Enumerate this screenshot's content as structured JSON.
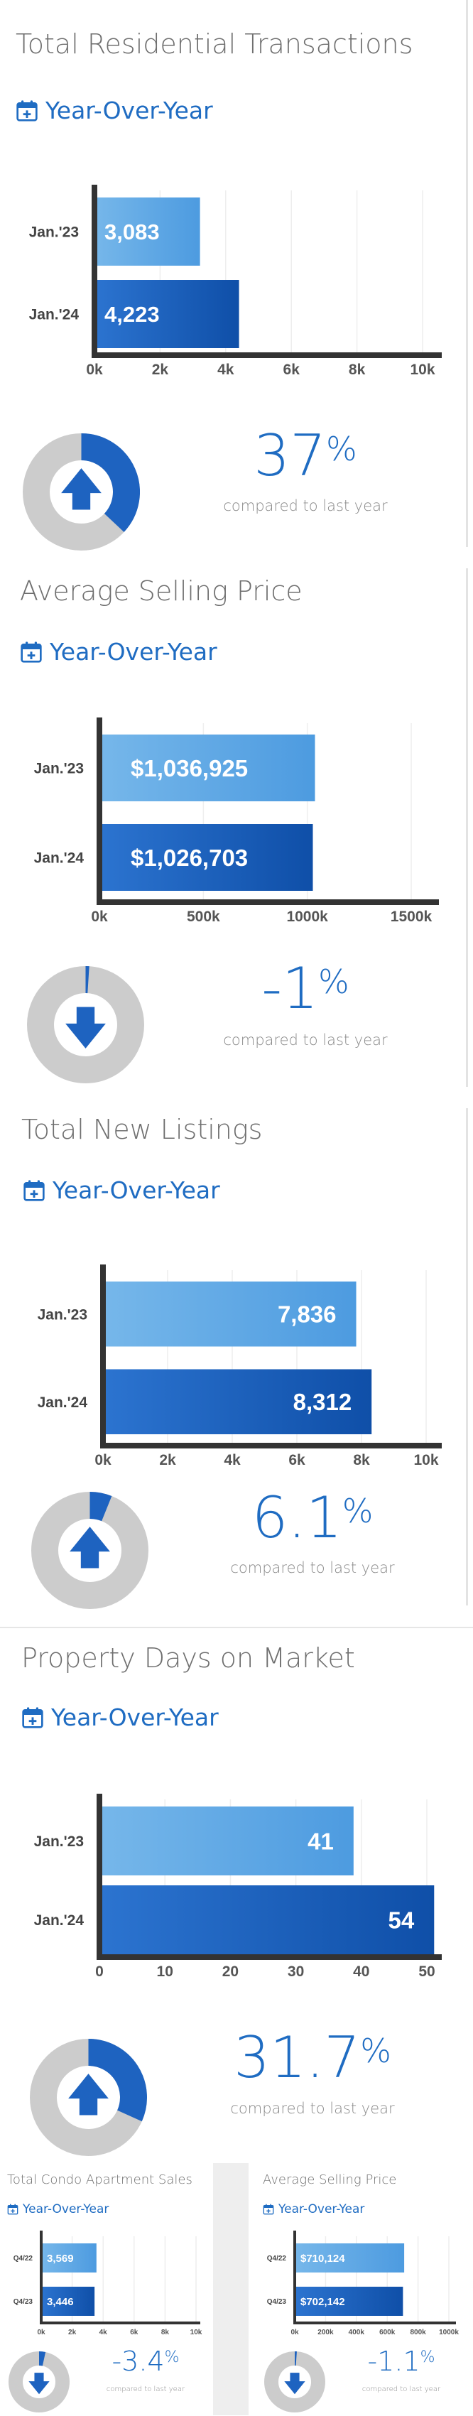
{
  "sections": [
    {
      "title": "Total Residential Transactions",
      "subtitle": "Year-Over-Year",
      "change": "37",
      "change_unit": "%",
      "direction": "up",
      "compare_text": "compared to last year",
      "chart_data": {
        "type": "bar",
        "orientation": "horizontal",
        "categories": [
          "Jan.'23",
          "Jan.'24"
        ],
        "values": [
          3083,
          4223
        ],
        "value_labels": [
          "3,083",
          "4,223"
        ],
        "xticks": [
          "0k",
          "2k",
          "4k",
          "6k",
          "8k",
          "10k"
        ],
        "xlim": [
          0,
          10000
        ],
        "grid": true
      }
    },
    {
      "title": "Average Selling Price",
      "subtitle": "Year-Over-Year",
      "change": "-1",
      "change_unit": "%",
      "direction": "down",
      "compare_text": "compared to last year",
      "chart_data": {
        "type": "bar",
        "orientation": "horizontal",
        "categories": [
          "Jan.'23",
          "Jan.'24"
        ],
        "values": [
          1036925,
          1026703
        ],
        "value_labels": [
          "$1,036,925",
          "$1,026,703"
        ],
        "xticks": [
          "0k",
          "500k",
          "1000k",
          "1500k"
        ],
        "xlim": [
          0,
          1500000
        ],
        "grid": true
      }
    },
    {
      "title": "Total New Listings",
      "subtitle": "Year-Over-Year",
      "change": "6.1",
      "change_unit": "%",
      "direction": "up",
      "compare_text": "compared to last year",
      "chart_data": {
        "type": "bar",
        "orientation": "horizontal",
        "categories": [
          "Jan.'23",
          "Jan.'24"
        ],
        "values": [
          7836,
          8312
        ],
        "value_labels": [
          "7,836",
          "8,312"
        ],
        "xticks": [
          "0k",
          "2k",
          "4k",
          "6k",
          "8k",
          "10k"
        ],
        "xlim": [
          0,
          10000
        ],
        "grid": true
      }
    },
    {
      "title": "Property Days on Market",
      "subtitle": "Year-Over-Year",
      "change": "31.7",
      "change_unit": "%",
      "direction": "up",
      "compare_text": "compared to last year",
      "chart_data": {
        "type": "bar",
        "orientation": "horizontal",
        "categories": [
          "Jan.'23",
          "Jan.'24"
        ],
        "values": [
          41,
          54
        ],
        "value_labels": [
          "41",
          "54"
        ],
        "xticks": [
          "0",
          "10",
          "20",
          "30",
          "40",
          "50"
        ],
        "xlim": [
          0,
          55
        ],
        "grid": true
      }
    }
  ],
  "small_sections": [
    {
      "title": "Total Condo Apartment Sales",
      "subtitle": "Year-Over-Year",
      "change": "-3.4",
      "change_unit": "%",
      "direction": "down",
      "compare_text": "compared to last year",
      "chart_data": {
        "type": "bar",
        "orientation": "horizontal",
        "categories": [
          "Q4/22",
          "Q4/23"
        ],
        "values": [
          3569,
          3446
        ],
        "value_labels": [
          "3,569",
          "3,446"
        ],
        "xticks": [
          "0k",
          "2k",
          "4k",
          "6k",
          "8k",
          "10k"
        ],
        "xlim": [
          0,
          10000
        ],
        "grid": true
      }
    },
    {
      "title": "Average Selling Price",
      "subtitle": "Year-Over-Year",
      "change": "-1.1",
      "change_unit": "%",
      "direction": "down",
      "compare_text": "compared to last year",
      "chart_data": {
        "type": "bar",
        "orientation": "horizontal",
        "categories": [
          "Q4/22",
          "Q4/23"
        ],
        "values": [
          710124,
          702142
        ],
        "value_labels": [
          "$710,124",
          "$702,142"
        ],
        "xticks": [
          "0k",
          "200k",
          "400k",
          "600k",
          "800k",
          "1000k"
        ],
        "xlim": [
          0,
          1000000
        ],
        "grid": true
      }
    }
  ],
  "colors": {
    "accent": "#1f6cc2",
    "bar_light_start": "#76b7ea",
    "bar_light_end": "#4d9be0",
    "bar_dark_start": "#2c74d0",
    "bar_dark_end": "#0f4fa8",
    "donut_bg": "#cccccc",
    "donut_fill": "#1e63c0",
    "axis": "#333333",
    "grid": "#eeeeee"
  },
  "icons": {
    "calendar": "calendar-plus-icon",
    "up": "arrow-up-icon",
    "down": "arrow-down-icon"
  }
}
